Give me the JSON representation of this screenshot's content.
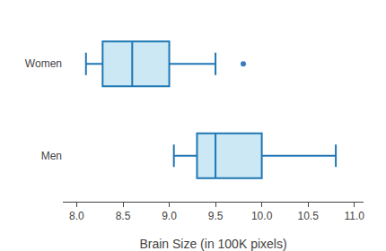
{
  "chart_data": {
    "type": "box",
    "orientation": "horizontal",
    "xlabel": "Brain Size (in 100K pixels)",
    "categories": [
      "Women",
      "Men"
    ],
    "whisker_low": [
      8.1,
      9.05
    ],
    "q1": [
      8.28,
      9.3
    ],
    "median": [
      8.6,
      9.5
    ],
    "q3": [
      9.0,
      10.0
    ],
    "whisker_high": [
      9.5,
      10.8
    ],
    "outliers": {
      "values": [
        [
          9.8
        ],
        []
      ],
      "color": "#3a7abf"
    },
    "color": "#cce8f5",
    "xlim": [
      7.85,
      11.1
    ],
    "xticks": [
      {
        "value": 8.0,
        "label": "8.0"
      },
      8.5,
      {
        "value": 9.0,
        "label": "9.0"
      },
      9.5,
      {
        "value": 10.0,
        "label": "10.0"
      },
      10.5,
      {
        "value": 11.0,
        "label": "11.0"
      }
    ],
    "grid": false
  }
}
